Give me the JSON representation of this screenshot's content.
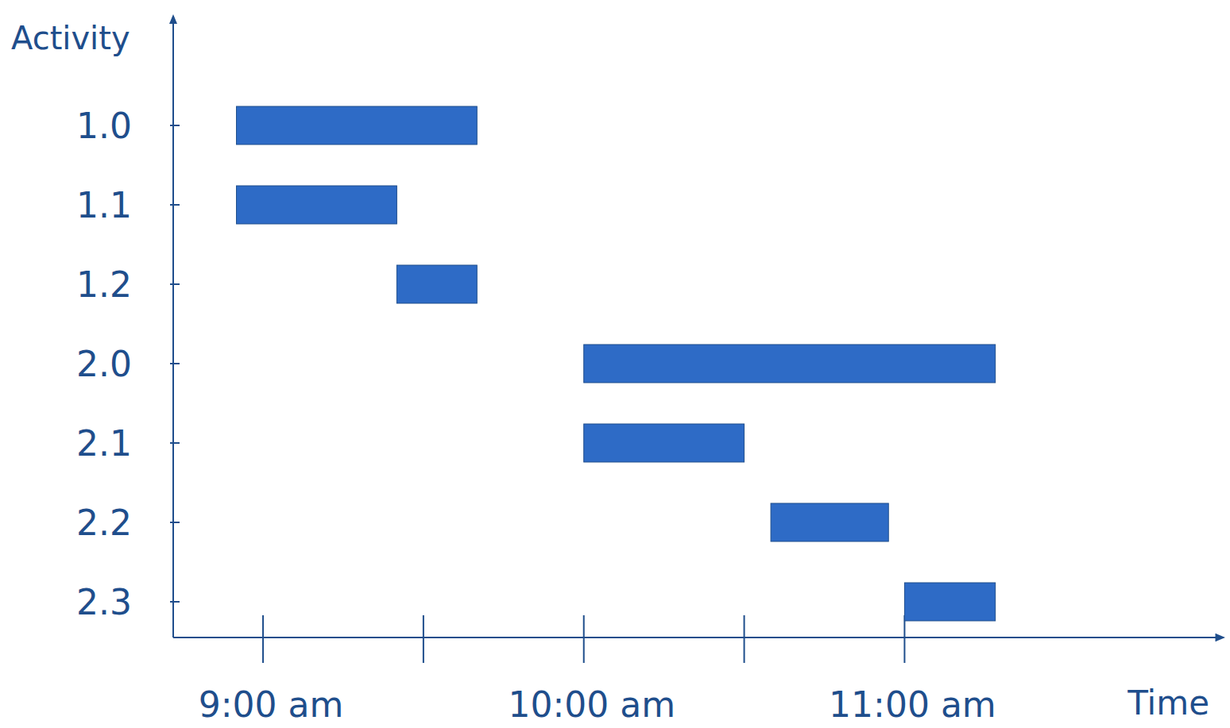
{
  "chart_data": {
    "type": "gantt",
    "orientation": "horizontal",
    "x_label": "Time",
    "y_label": "Activity",
    "categories": [
      "1.0",
      "1.1",
      "1.2",
      "2.0",
      "2.1",
      "2.2",
      "2.3"
    ],
    "start": [
      8.917,
      8.917,
      9.417,
      10.0,
      10.0,
      10.583,
      11.0
    ],
    "end": [
      9.667,
      9.417,
      9.667,
      11.283,
      10.5,
      10.95,
      11.283
    ],
    "color": "#2e6bc6",
    "xlim": [
      8.72,
      11.97
    ],
    "xticks": [
      {
        "value": 9,
        "label": "9:00 am"
      },
      {
        "value": 10,
        "label": "10:00 am"
      },
      {
        "value": 11,
        "label": "11:00 am"
      }
    ],
    "minor_xticks": [
      9.5,
      10.5
    ]
  }
}
